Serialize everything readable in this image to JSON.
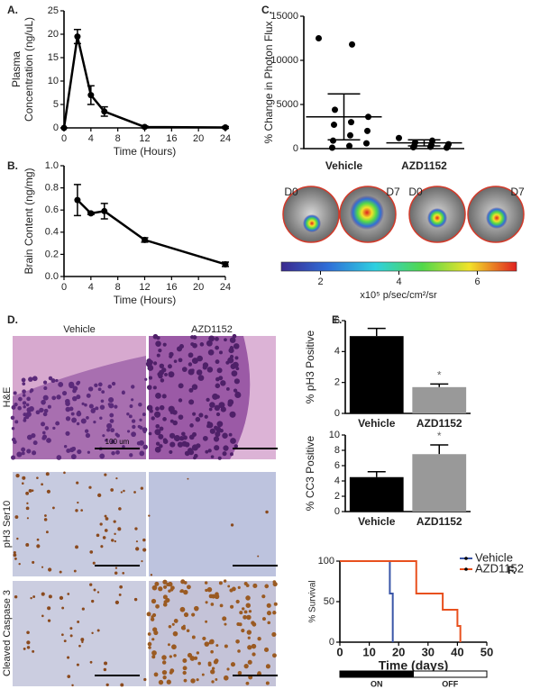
{
  "panels": [
    "A.",
    "B.",
    "C.",
    "D.",
    "E.",
    "F."
  ],
  "chart_data": [
    {
      "type": "line",
      "x": [
        0,
        2,
        4,
        6,
        12,
        24
      ],
      "values": [
        0,
        19.5,
        7,
        3.5,
        0.2,
        0.1
      ],
      "errors": [
        0,
        1.5,
        2,
        1,
        0.2,
        0.2
      ],
      "xlim": [
        0,
        24
      ],
      "xticks": [
        0,
        4,
        8,
        12,
        16,
        20,
        24
      ],
      "ylim": [
        0,
        25
      ],
      "yticks": [
        0,
        5,
        10,
        15,
        20,
        25
      ],
      "xlabel": "Time (Hours)",
      "ylabel": [
        "Plasma",
        "Concentration (ng/uL)"
      ],
      "color": "#000000"
    },
    {
      "type": "line",
      "x": [
        2,
        4,
        6,
        12,
        24
      ],
      "values": [
        0.69,
        0.57,
        0.59,
        0.33,
        0.11
      ],
      "errors": [
        0.14,
        0.01,
        0.07,
        0.02,
        0.02
      ],
      "xlim": [
        0,
        24
      ],
      "xticks": [
        0,
        4,
        8,
        12,
        16,
        20,
        24
      ],
      "ylim": [
        0,
        1
      ],
      "yticks": [
        {
          "value": 0,
          "label": "0.0"
        },
        0.2,
        0.4,
        0.6,
        0.8,
        {
          "value": 1,
          "label": "1.0"
        }
      ],
      "xlabel": "Time (Hours)",
      "ylabel": [
        "Brain Content (ng/mg)"
      ],
      "color": "#000000"
    },
    {
      "type": "scatter",
      "categories": [
        "Vehicle",
        "AZD1152"
      ],
      "values": [
        [
          12500,
          11800,
          4400,
          3600,
          3000,
          2700,
          2000,
          1500,
          900,
          600,
          300,
          100
        ],
        [
          1200,
          900,
          700,
          500,
          400,
          300,
          250,
          200,
          150,
          100
        ]
      ],
      "mean": [
        3600,
        650
      ],
      "sd": [
        2600,
        350
      ],
      "ylim": [
        0,
        15000
      ],
      "yticks": [
        0,
        5000,
        10000,
        15000
      ],
      "ylabel": [
        "% Change in Photon Flux"
      ],
      "color": "#000000"
    },
    {
      "type": "bar",
      "categories": [
        "Vehicle",
        "AZD1152"
      ],
      "values": [
        5.0,
        1.7
      ],
      "errors": [
        0.5,
        0.2
      ],
      "colors": [
        "#000000",
        "#999999"
      ],
      "ylim": [
        0,
        6
      ],
      "yticks": [
        0,
        2,
        4,
        6
      ],
      "ylabel": [
        "% pH3 Positive"
      ],
      "annotation": "*"
    },
    {
      "type": "bar",
      "categories": [
        "Vehicle",
        "AZD1152"
      ],
      "values": [
        4.5,
        7.5
      ],
      "errors": [
        0.7,
        1.2
      ],
      "colors": [
        "#000000",
        "#999999"
      ],
      "ylim": [
        0,
        10
      ],
      "yticks": [
        0,
        2,
        4,
        6,
        8,
        10
      ],
      "ylabel": [
        "% CC3 Positive"
      ],
      "annotation": "*"
    },
    {
      "type": "step",
      "series": [
        {
          "name": "Vehicle",
          "color": "#3a56a8",
          "x": [
            0,
            17,
            18
          ],
          "values": [
            100,
            60,
            0
          ]
        },
        {
          "name": "AZD1152",
          "color": "#e8501e",
          "x": [
            0,
            26,
            35,
            40,
            41
          ],
          "values": [
            100,
            60,
            40,
            20,
            0
          ]
        }
      ],
      "xlim": [
        0,
        50
      ],
      "xticks": [
        0,
        10,
        20,
        30,
        40,
        50
      ],
      "ylim": [
        0,
        100
      ],
      "yticks": [
        0,
        50,
        100
      ],
      "xlabel": "Time (days)",
      "ylabel": [
        "% Survival"
      ],
      "legend": "upper right",
      "schedule": [
        {
          "label": "ON",
          "range": [
            0,
            25
          ],
          "color": "#000000"
        },
        {
          "label": "OFF",
          "range": [
            25,
            50
          ],
          "color": "#ffffff"
        }
      ]
    }
  ],
  "imaging": {
    "labels": [
      "D0",
      "D7",
      "D0",
      "D7"
    ],
    "colorbar_label": "x10⁵ p/sec/cm²/sr",
    "colorbar_lim": [
      1,
      7
    ],
    "colorbar_ticks": [
      2,
      4,
      6
    ]
  },
  "histology": {
    "columns": [
      "Vehicle",
      "AZD1152"
    ],
    "rows": [
      "H&E",
      "pH3 Ser10",
      "Cleaved Caspase 3"
    ],
    "scale_bar": "100 um"
  }
}
